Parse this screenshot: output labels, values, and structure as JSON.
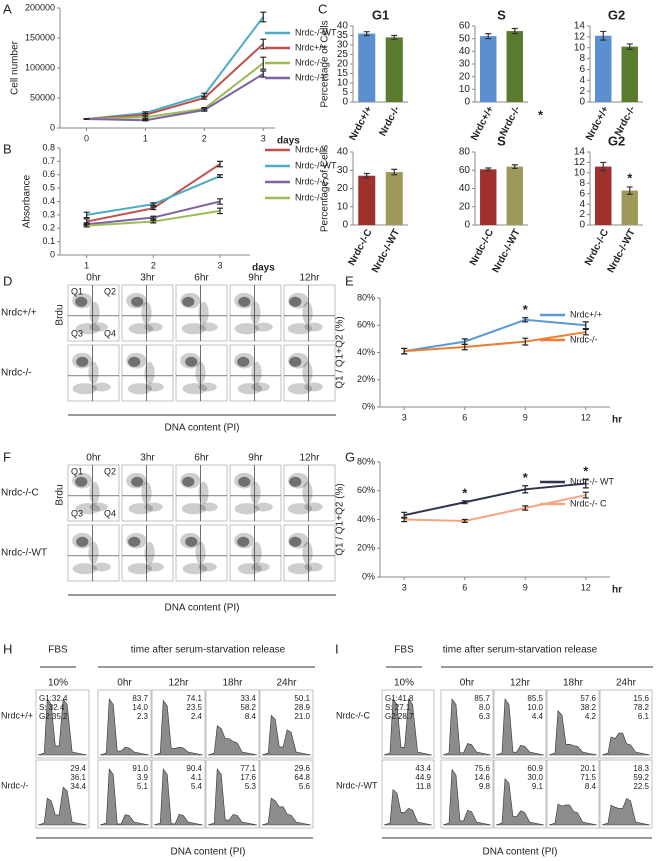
{
  "panels": [
    "A",
    "B",
    "C",
    "D",
    "E",
    "F",
    "G",
    "H",
    "I"
  ],
  "chart_data": [
    {
      "type": "line",
      "xlabel": "days",
      "ylabel": "Cell number",
      "x": [
        0,
        1,
        2,
        3
      ],
      "xlim": [
        -0.45,
        3.2
      ],
      "xticks": [
        0,
        1,
        2,
        3
      ],
      "ylim": [
        0,
        200000
      ],
      "yticks": [
        0,
        50000,
        100000,
        150000,
        200000
      ],
      "series": [
        {
          "name": "Nrdc-/-WT",
          "color": "#4bacc6",
          "values": [
            15000,
            25000,
            55000,
            185000
          ],
          "errors": [
            500,
            2000,
            3000,
            8000
          ]
        },
        {
          "name": "Nrdc+/+",
          "color": "#c0504d",
          "values": [
            15000,
            22000,
            50000,
            140000
          ],
          "errors": [
            500,
            2000,
            2000,
            8000
          ]
        },
        {
          "name": "Nrdc-/-",
          "color": "#9bbb59",
          "values": [
            15000,
            18000,
            32000,
            108000
          ],
          "errors": [
            500,
            2000,
            2000,
            10000
          ]
        },
        {
          "name": "Nrdc-/-C",
          "color": "#8064a2",
          "values": [
            15000,
            13000,
            30000,
            90000
          ],
          "errors": [
            500,
            1000,
            2000,
            5000
          ]
        }
      ]
    },
    {
      "type": "line",
      "xlabel": "days",
      "ylabel": "Absorbance",
      "x": [
        1,
        2,
        3
      ],
      "xlim": [
        0.6,
        3.45
      ],
      "xticks": [
        1,
        2,
        3
      ],
      "ylim": [
        0,
        0.8
      ],
      "yticks": [
        0,
        0.1,
        0.2,
        0.3,
        0.4,
        0.5,
        0.6,
        0.7,
        0.8
      ],
      "series": [
        {
          "name": "Nrdc+/+",
          "color": "#c0504d",
          "values": [
            0.25,
            0.35,
            0.68
          ],
          "errors": [
            0.02,
            0.01,
            0.02
          ]
        },
        {
          "name": "Nrdc-/-WT",
          "color": "#4bacc6",
          "values": [
            0.3,
            0.38,
            0.59
          ],
          "errors": [
            0.02,
            0.01,
            0.01
          ]
        },
        {
          "name": "Nrdc-/-C",
          "color": "#8064a2",
          "values": [
            0.23,
            0.28,
            0.4
          ],
          "errors": [
            0.01,
            0.01,
            0.02
          ]
        },
        {
          "name": "Nrdc-/-",
          "color": "#9bbb59",
          "values": [
            0.22,
            0.25,
            0.33
          ],
          "errors": [
            0.01,
            0.01,
            0.02
          ]
        }
      ]
    },
    {
      "type": "bar",
      "title": "G1",
      "ylabel": "Percentage of Cells",
      "categories": [
        "Nrdc+/+",
        "Nrdc-/-"
      ],
      "values": [
        36,
        34
      ],
      "errors": [
        1,
        1
      ],
      "colors": [
        "#5b8fd0",
        "#5a7a2e"
      ],
      "ylim": [
        0,
        40
      ],
      "yticks": [
        0,
        5,
        10,
        15,
        20,
        25,
        30,
        35,
        40
      ]
    },
    {
      "type": "bar",
      "title": "S",
      "categories": [
        "Nrdc+/+",
        "Nrdc-/-"
      ],
      "values": [
        52,
        56
      ],
      "errors": [
        2,
        2
      ],
      "colors": [
        "#5b8fd0",
        "#5a7a2e"
      ],
      "ylim": [
        0,
        60
      ],
      "yticks": [
        0,
        10,
        20,
        30,
        40,
        50,
        60
      ]
    },
    {
      "type": "bar",
      "title": "G2",
      "categories": [
        "Nrdc+/+",
        "Nrdc-/-"
      ],
      "values": [
        12.2,
        10.2
      ],
      "errors": [
        0.8,
        0.5
      ],
      "colors": [
        "#5b8fd0",
        "#5a7a2e"
      ],
      "ylim": [
        0,
        14
      ],
      "yticks": [
        0,
        2,
        4,
        6,
        8,
        10,
        12,
        14
      ],
      "annotations": [
        {
          "text": "*"
        }
      ]
    },
    {
      "type": "bar",
      "ylabel": "Percentage of Cells",
      "categories": [
        "Nrdc-/-C",
        "Nrdc-/-WT"
      ],
      "values": [
        27,
        29
      ],
      "errors": [
        1.2,
        1.5
      ],
      "colors": [
        "#a0302c",
        "#a09a5a"
      ],
      "ylim": [
        0,
        40
      ],
      "yticks": [
        0,
        10,
        20,
        30,
        40
      ]
    },
    {
      "type": "bar",
      "title": "S",
      "categories": [
        "Nrdc-/-C",
        "Nrdc-/-WT"
      ],
      "values": [
        61,
        64
      ],
      "errors": [
        1.5,
        2
      ],
      "colors": [
        "#a0302c",
        "#a09a5a"
      ],
      "ylim": [
        0,
        80
      ],
      "yticks": [
        0,
        20,
        40,
        60,
        80
      ]
    },
    {
      "type": "bar",
      "title": "G2",
      "categories": [
        "Nrdc-/-C",
        "Nrdc-/-WT"
      ],
      "values": [
        11.2,
        6.6
      ],
      "errors": [
        0.8,
        0.7
      ],
      "colors": [
        "#a0302c",
        "#a09a5a"
      ],
      "ylim": [
        0,
        14
      ],
      "yticks": [
        0,
        2,
        4,
        6,
        8,
        10,
        12,
        14
      ],
      "annotations": [
        {
          "text": "*",
          "category": 1
        }
      ]
    },
    {
      "type": "line",
      "xlabel": "hr",
      "ylabel": "Q1 / Q1+Q2 (%)",
      "x": [
        3,
        6,
        9,
        12
      ],
      "xlim": [
        1.8,
        13.2
      ],
      "xticks": [
        3,
        6,
        9,
        12
      ],
      "ylim": [
        0,
        80
      ],
      "yticks": [
        {
          "value": 0,
          "label": "0%"
        },
        {
          "value": 20,
          "label": "20%"
        },
        {
          "value": 40,
          "label": "40%"
        },
        {
          "value": 60,
          "label": "60%"
        },
        {
          "value": 80,
          "label": "80%"
        }
      ],
      "series": [
        {
          "name": "Nrdc+/+",
          "color": "#5b9bd5",
          "values": [
            41,
            48,
            64,
            60
          ],
          "errors": [
            2,
            2,
            1.5,
            2.5
          ]
        },
        {
          "name": "Nrdc-/-",
          "color": "#ed7d31",
          "values": [
            41,
            44,
            48,
            55
          ],
          "errors": [
            2,
            2,
            2.5,
            2
          ]
        }
      ],
      "annotations": [
        {
          "text": "*",
          "x": 9
        }
      ]
    },
    {
      "type": "line",
      "xlabel": "hr",
      "ylabel": "Q1 / Q1+Q2 (%)",
      "x": [
        3,
        6,
        9,
        12
      ],
      "xlim": [
        1.8,
        13.2
      ],
      "xticks": [
        3,
        6,
        9,
        12
      ],
      "ylim": [
        0,
        80
      ],
      "yticks": [
        {
          "value": 0,
          "label": "0%"
        },
        {
          "value": 20,
          "label": "20%"
        },
        {
          "value": 40,
          "label": "40%"
        },
        {
          "value": 60,
          "label": "60%"
        },
        {
          "value": 80,
          "label": "80%"
        }
      ],
      "series": [
        {
          "name": "Nrdc-/- WT",
          "color": "#2e3450",
          "values": [
            43,
            52,
            61,
            65
          ],
          "errors": [
            2,
            1,
            2.5,
            3
          ]
        },
        {
          "name": "Nrdc-/- C",
          "color": "#f4a582",
          "values": [
            40,
            39,
            48,
            57
          ],
          "errors": [
            1.5,
            1,
            1.5,
            2
          ]
        }
      ],
      "annotations": [
        {
          "text": "*",
          "x": 6
        },
        {
          "text": "*",
          "x": 9
        },
        {
          "text": "*",
          "x": 12
        }
      ]
    }
  ],
  "flow_D": {
    "rows": [
      "Nrdc+/+",
      "Nrdc-/-"
    ],
    "times": [
      "0hr",
      "3hr",
      "6hr",
      "9hr",
      "12hr"
    ],
    "ylabel": "Brdu",
    "xlabel": "DNA content (PI)",
    "quadrants": [
      "Q1",
      "Q2",
      "Q3",
      "Q4"
    ]
  },
  "flow_F": {
    "rows": [
      "Nrdc-/-C",
      "Nrdc-/-WT"
    ],
    "times": [
      "0hr",
      "3hr",
      "6hr",
      "9hr",
      "12hr"
    ],
    "ylabel": "Brdu",
    "xlabel": "DNA content (PI)",
    "quadrants": [
      "Q1",
      "Q2",
      "Q3",
      "Q4"
    ]
  },
  "hist_H": {
    "header": "FBS",
    "header_sub": "10%",
    "span": "time after serum-starvation release",
    "times": [
      "0hr",
      "12hr",
      "18hr",
      "24hr"
    ],
    "rows": [
      "Nrdc+/+",
      "Nrdc-/-"
    ],
    "xlabel": "DNA content (PI)",
    "stats": [
      [
        [
          "G1:32.4",
          "S: 32.4",
          "G2:35.2"
        ],
        [
          "83.7",
          "14.0",
          "2.3"
        ],
        [
          "74.1",
          "23.5",
          "2.4"
        ],
        [
          "33.4",
          "58.2",
          "8.4"
        ],
        [
          "50.1",
          "28.9",
          "21.0"
        ]
      ],
      [
        [
          "29.4",
          "36.1",
          "34.4"
        ],
        [
          "91.0",
          "3.9",
          "5.1"
        ],
        [
          "90.4",
          "4.1",
          "5.4"
        ],
        [
          "77.1",
          "17.6",
          "5.3"
        ],
        [
          "29.6",
          "64.8",
          "5.6"
        ]
      ]
    ]
  },
  "hist_I": {
    "header": "FBS",
    "header_sub": "10%",
    "span": "time after serum-starvation release",
    "times": [
      "0hr",
      "12hr",
      "18hr",
      "24hr"
    ],
    "rows": [
      "Nrdc-/-C",
      "Nrdc-/-WT"
    ],
    "xlabel": "DNA content (PI)",
    "stats": [
      [
        [
          "G1:41.8",
          "S: 27.1",
          "G2:28.7"
        ],
        [
          "85.7",
          "8.0",
          "6.3"
        ],
        [
          "85.5",
          "10.0",
          "4.4"
        ],
        [
          "57.6",
          "38.2",
          "4.2"
        ],
        [
          "15.6",
          "78.2",
          "6.1"
        ]
      ],
      [
        [
          "43.4",
          "44.9",
          "11.8"
        ],
        [
          "75.6",
          "14.6",
          "9.8"
        ],
        [
          "60.9",
          "30.0",
          "9.1"
        ],
        [
          "20.1",
          "71.5",
          "8.4"
        ],
        [
          "18.3",
          "59.2",
          "22.5"
        ]
      ]
    ]
  }
}
